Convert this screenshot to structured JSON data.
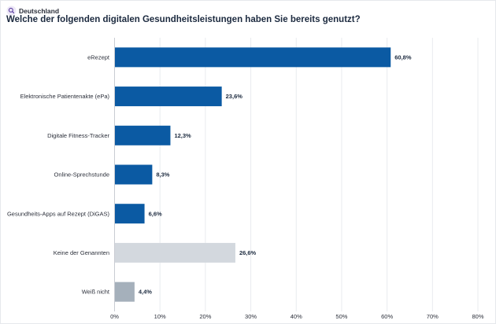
{
  "header": {
    "region": "Deutschland",
    "title": "Welche der folgenden digitalen Gesundheitsleistungen haben Sie bereits genutzt?"
  },
  "icons": {
    "region_icon": "search-icon"
  },
  "chart_data": {
    "type": "bar",
    "orientation": "horizontal",
    "categories": [
      "eRezept",
      "Elektronische Patientenakte (ePa)",
      "Digitale Fitness-Tracker",
      "Online-Sprechstunde",
      "Gesundheits-Apps auf Rezept (DiGAS)",
      "Keine der Genannten",
      "Weiß nicht"
    ],
    "values": [
      60.8,
      23.6,
      12.3,
      8.3,
      6.6,
      26.6,
      4.4
    ],
    "value_labels": [
      "60,8%",
      "23,6%",
      "12,3%",
      "8,3%",
      "6,6%",
      "26,6%",
      "4,4%"
    ],
    "bar_colors": [
      "#0b5aa3",
      "#0b5aa3",
      "#0b5aa3",
      "#0b5aa3",
      "#0b5aa3",
      "#d3d8de",
      "#a5b0bb"
    ],
    "xlim": [
      0,
      80
    ],
    "x_ticks": [
      "0%",
      "10%",
      "20%",
      "30%",
      "40%",
      "50%",
      "60%",
      "70%",
      "80%"
    ],
    "grid": true
  }
}
